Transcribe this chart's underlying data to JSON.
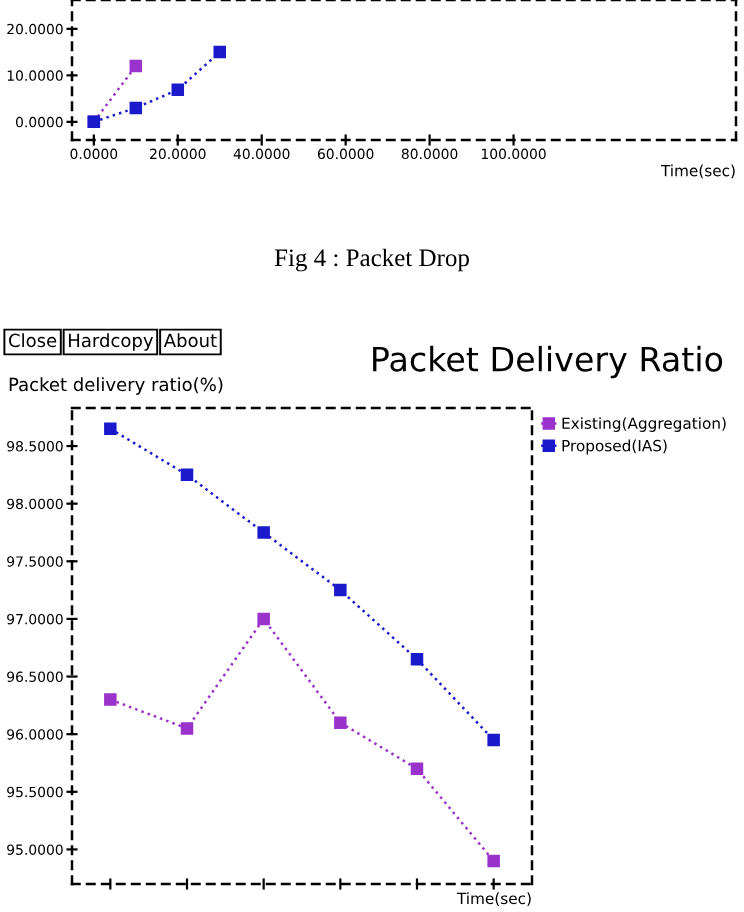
{
  "chart_data": [
    {
      "type": "line",
      "xlabel": "Time(sec)",
      "annotations": [
        "Fig 4 : Packet Drop"
      ],
      "marker": "square",
      "line_style": "dotted",
      "tick_labels": "xy",
      "xlim": [
        -5.2,
        153
      ],
      "ylim": [
        -3.9,
        26.2
      ],
      "xticks": [
        {
          "value": 0,
          "label": "0.0000"
        },
        {
          "value": 20,
          "label": "20.0000"
        },
        {
          "value": 40,
          "label": "40.0000"
        },
        {
          "value": 60,
          "label": "60.0000"
        },
        {
          "value": 80,
          "label": "80.0000"
        },
        {
          "value": 100,
          "label": "100.0000"
        }
      ],
      "yticks": [
        {
          "value": 0,
          "label": "0.0000"
        },
        {
          "value": 10,
          "label": "10.0000"
        },
        {
          "value": 20,
          "label": "20.0000"
        }
      ],
      "series": [
        {
          "color": "#9933cc",
          "x": [
            0,
            10
          ],
          "values": [
            0,
            12
          ]
        },
        {
          "color": "#1a1acc",
          "x": [
            0,
            10,
            20,
            30
          ],
          "values": [
            0,
            3,
            6.9,
            15
          ]
        }
      ]
    },
    {
      "type": "line",
      "title": "Packet Delivery Ratio",
      "ylabel": "Packet delivery ratio(%)",
      "xlabel": "Time(sec)",
      "annotations": [
        "Close",
        "Hardcopy",
        "About"
      ],
      "marker": "square",
      "line_style": "dotted",
      "legend": "right",
      "tick_labels": "y",
      "categories": [
        null,
        null,
        null,
        null,
        null,
        null
      ],
      "ylim": [
        94.7,
        98.83
      ],
      "yticks": [
        {
          "value": 95,
          "label": "95.0000"
        },
        {
          "value": 95.5,
          "label": "95.5000"
        },
        {
          "value": 96,
          "label": "96.0000"
        },
        {
          "value": 96.5,
          "label": "96.5000"
        },
        {
          "value": 97,
          "label": "97.0000"
        },
        {
          "value": 97.5,
          "label": "97.5000"
        },
        {
          "value": 98,
          "label": "98.0000"
        },
        {
          "value": 98.5,
          "label": "98.5000"
        }
      ],
      "series": [
        {
          "name": "Existing(Aggregation)",
          "color": "#9933cc",
          "values": [
            96.3,
            96.05,
            97.0,
            96.1,
            95.7,
            94.9
          ]
        },
        {
          "name": "Proposed(IAS)",
          "color": "#1a1acc",
          "values": [
            98.65,
            98.25,
            97.75,
            97.25,
            96.65,
            95.95
          ]
        }
      ]
    }
  ]
}
